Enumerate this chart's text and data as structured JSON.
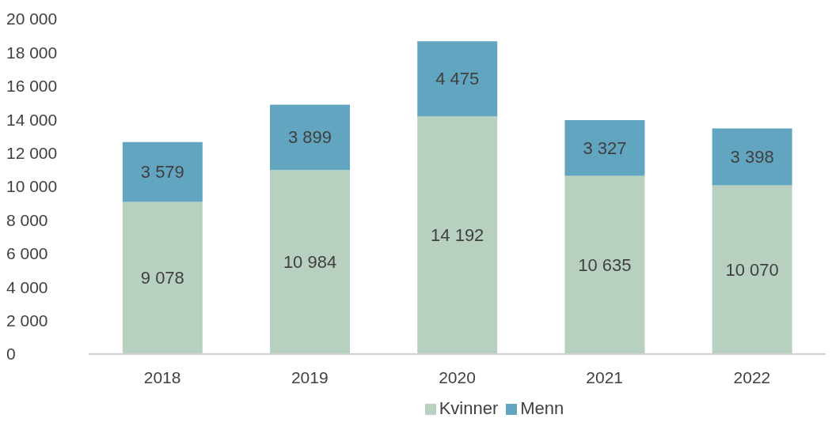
{
  "chart_data": {
    "type": "bar",
    "stacked": true,
    "categories": [
      "2018",
      "2019",
      "2020",
      "2021",
      "2022"
    ],
    "series": [
      {
        "name": "Kvinner",
        "color": "#b7d0bf",
        "values": [
          9078,
          10984,
          14192,
          10635,
          10070
        ],
        "value_labels": [
          "9 078",
          "10 984",
          "14 192",
          "10 635",
          "10 070"
        ]
      },
      {
        "name": "Menn",
        "color": "#62a5c0",
        "values": [
          3579,
          3899,
          4475,
          3327,
          3398
        ],
        "value_labels": [
          "3 579",
          "3 899",
          "4 475",
          "3 327",
          "3 398"
        ]
      }
    ],
    "ylim": [
      0,
      20000
    ],
    "yticks": [
      {
        "value": 0,
        "label": "0"
      },
      {
        "value": 2000,
        "label": "2 000"
      },
      {
        "value": 4000,
        "label": "4 000"
      },
      {
        "value": 6000,
        "label": "6 000"
      },
      {
        "value": 8000,
        "label": "8 000"
      },
      {
        "value": 10000,
        "label": "10 000"
      },
      {
        "value": 12000,
        "label": "12 000"
      },
      {
        "value": 14000,
        "label": "14 000"
      },
      {
        "value": 16000,
        "label": "16 000"
      },
      {
        "value": 18000,
        "label": "18 000"
      },
      {
        "value": 20000,
        "label": "20 000"
      }
    ],
    "grid": false,
    "legend": "bottom"
  }
}
